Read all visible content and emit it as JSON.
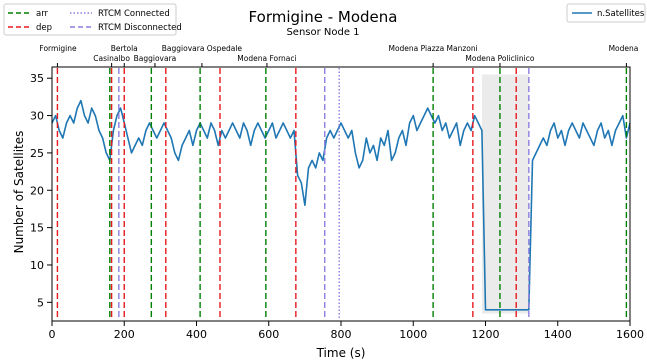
{
  "chart_data": {
    "type": "line",
    "title": "Formigine - Modena",
    "subtitle": "Sensor Node 1",
    "xlabel": "Time (s)",
    "ylabel": "Number of Satellites",
    "xlim": [
      0,
      1600
    ],
    "ylim": [
      2.5,
      36.5
    ],
    "xticks": [
      0,
      200,
      400,
      600,
      800,
      1000,
      1200,
      1400,
      1600
    ],
    "yticks": [
      5,
      10,
      15,
      20,
      25,
      30,
      35
    ],
    "grid": false,
    "legend_left": [
      {
        "label": "arr",
        "color": "#008000",
        "style": "dashed"
      },
      {
        "label": "dep",
        "color": "#e8191e",
        "style": "dashed"
      },
      {
        "label": "RTCM Connected",
        "color": "#8c7ee0",
        "style": "dotted"
      },
      {
        "label": "RTCM Disconnected",
        "color": "#8c7ee0",
        "style": "dashed"
      }
    ],
    "legend_right": [
      {
        "label": "n.Satellites",
        "color": "#1f77b4",
        "style": "solid"
      }
    ],
    "stations": [
      {
        "name": "Formigine",
        "x": 15
      },
      {
        "name": "Casinalbo",
        "x": 165
      },
      {
        "name": "Bertola",
        "x": 200
      },
      {
        "name": "Baggiovara",
        "x": 285
      },
      {
        "name": "Baggiovara Ospedale",
        "x": 415
      },
      {
        "name": "Modena Fornaci",
        "x": 595
      },
      {
        "name": "Modena Piazza Manzoni",
        "x": 1055
      },
      {
        "name": "Modena Policlinico",
        "x": 1240
      },
      {
        "name": "Modena",
        "x": 1590
      }
    ],
    "arrivals": [
      160,
      275,
      410,
      592,
      1055,
      1240,
      1590
    ],
    "departures": [
      15,
      165,
      200,
      315,
      465,
      675,
      1165,
      1285
    ],
    "rtcm_connected": [
      795
    ],
    "rtcm_disconnected": [
      185,
      755,
      1320
    ],
    "shaded_interval": [
      1190,
      1320
    ],
    "series": [
      {
        "name": "n.Satellites",
        "color": "#1f77b4",
        "x": [
          0,
          10,
          20,
          30,
          40,
          50,
          60,
          70,
          80,
          90,
          100,
          110,
          120,
          130,
          140,
          150,
          160,
          170,
          180,
          190,
          200,
          210,
          220,
          230,
          240,
          250,
          260,
          270,
          280,
          290,
          300,
          310,
          320,
          330,
          340,
          350,
          360,
          370,
          380,
          390,
          400,
          410,
          420,
          430,
          440,
          450,
          460,
          470,
          480,
          490,
          500,
          510,
          520,
          530,
          540,
          550,
          560,
          570,
          580,
          590,
          600,
          610,
          620,
          630,
          640,
          650,
          660,
          670,
          680,
          690,
          700,
          710,
          720,
          730,
          740,
          750,
          760,
          770,
          780,
          790,
          800,
          810,
          820,
          830,
          840,
          850,
          860,
          870,
          880,
          890,
          900,
          910,
          920,
          930,
          940,
          950,
          960,
          970,
          980,
          990,
          1000,
          1010,
          1020,
          1030,
          1040,
          1050,
          1060,
          1070,
          1080,
          1090,
          1100,
          1110,
          1120,
          1130,
          1140,
          1150,
          1160,
          1170,
          1180,
          1190,
          1200,
          1210,
          1220,
          1230,
          1240,
          1250,
          1260,
          1270,
          1280,
          1290,
          1300,
          1310,
          1320,
          1330,
          1340,
          1350,
          1360,
          1370,
          1380,
          1390,
          1400,
          1410,
          1420,
          1430,
          1440,
          1450,
          1460,
          1470,
          1480,
          1490,
          1500,
          1510,
          1520,
          1530,
          1540,
          1550,
          1560,
          1570,
          1580,
          1590,
          1600
        ],
        "y": [
          29,
          30,
          28,
          27,
          29,
          30,
          29,
          31,
          32,
          30,
          29,
          31,
          30,
          28,
          27,
          25,
          24,
          28,
          30,
          31,
          29,
          27,
          25,
          26,
          27,
          26,
          28,
          29,
          28,
          27,
          28,
          29,
          28,
          27,
          25,
          24,
          26,
          27,
          28,
          26,
          28,
          29,
          28,
          27,
          29,
          28,
          26,
          28,
          27,
          28,
          29,
          28,
          27,
          29,
          28,
          26,
          28,
          29,
          28,
          27,
          28,
          29,
          27,
          28,
          29,
          28,
          27,
          28,
          22,
          21,
          18,
          23,
          24,
          23,
          25,
          24,
          27,
          28,
          27,
          28,
          29,
          28,
          27,
          28,
          25,
          23,
          24,
          27,
          25,
          26,
          24,
          27,
          26,
          28,
          24,
          25,
          27,
          28,
          26,
          29,
          30,
          28,
          29,
          30,
          31,
          30,
          29,
          30,
          28,
          29,
          27,
          28,
          29,
          26,
          28,
          29,
          28,
          30,
          29,
          28,
          4,
          4,
          4,
          4,
          4,
          4,
          4,
          4,
          4,
          4,
          4,
          4,
          4,
          24,
          25,
          26,
          27,
          26,
          28,
          29,
          27,
          28,
          26,
          28,
          29,
          28,
          27,
          29,
          28,
          27,
          26,
          28,
          29,
          27,
          28,
          26,
          28,
          29,
          30,
          27,
          29
        ]
      }
    ]
  }
}
